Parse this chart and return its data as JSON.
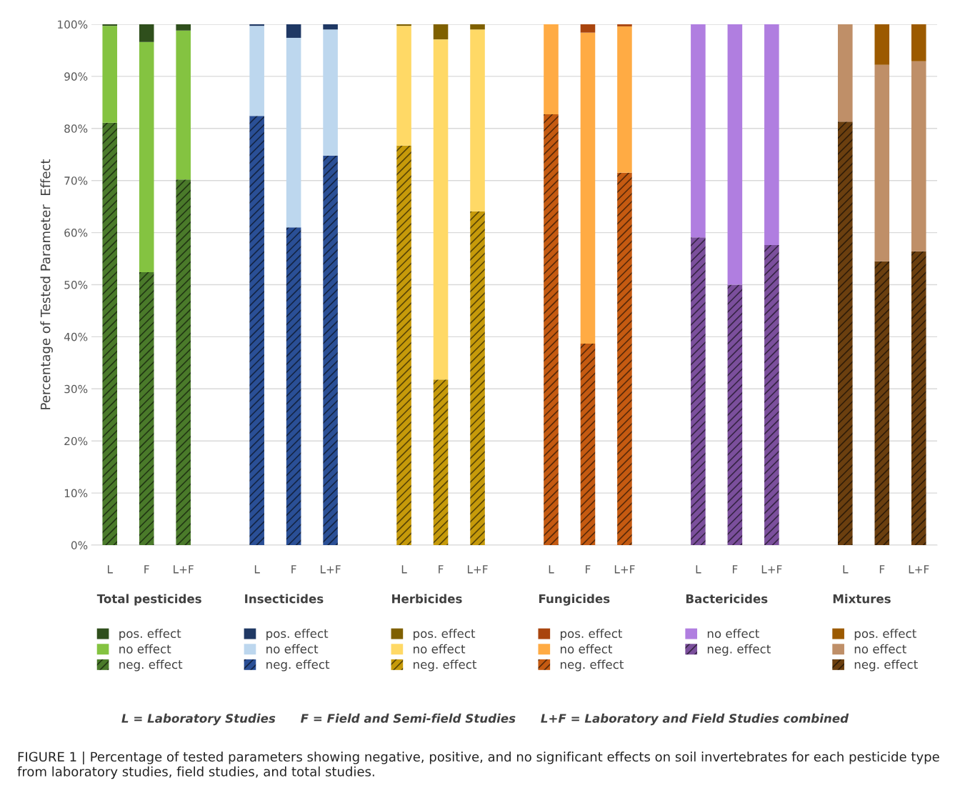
{
  "chart_data": {
    "type": "bar",
    "stacked": true,
    "legend": "bottom",
    "ylabel": "Percentage of Tested Parameter  Effect",
    "grid": "y",
    "ylim": [
      0,
      100
    ],
    "yticks": [
      {
        "value": 0,
        "label": "0%"
      },
      {
        "value": 10,
        "label": "10%"
      },
      {
        "value": 20,
        "label": "20%"
      },
      {
        "value": 30,
        "label": "30%"
      },
      {
        "value": 40,
        "label": "40%"
      },
      {
        "value": 50,
        "label": "50%"
      },
      {
        "value": 60,
        "label": "60%"
      },
      {
        "value": 70,
        "label": "70%"
      },
      {
        "value": 80,
        "label": "80%"
      },
      {
        "value": 90,
        "label": "90%"
      },
      {
        "value": 100,
        "label": "100%"
      }
    ],
    "categories": [
      "L",
      "F",
      "L+F",
      null,
      "L",
      "F",
      "L+F",
      null,
      "L",
      "F",
      "L+F",
      null,
      "L",
      "F",
      "L+F",
      null,
      "L",
      "F",
      "L+F",
      null,
      "L",
      "F",
      "L+F"
    ],
    "series": [
      {
        "name": "neg. effect",
        "values": [
          81.1,
          52.4,
          70.2,
          null,
          82.4,
          61.0,
          74.8,
          null,
          76.7,
          31.8,
          64.1,
          null,
          82.7,
          38.7,
          71.5,
          null,
          59.1,
          50.0,
          57.6,
          null,
          81.3,
          54.5,
          56.4
        ],
        "colors": [
          "#4a7a2a",
          "#4a7a2a",
          "#4a7a2a",
          null,
          "#2a4f96",
          "#2a4f96",
          "#2a4f96",
          null,
          "#c69a0a",
          "#c69a0a",
          "#c69a0a",
          null,
          "#c55a11",
          "#c55a11",
          "#c55a11",
          null,
          "#7b4f9c",
          "#7b4f9c",
          "#7b4f9c",
          null,
          "#6b3f0f",
          "#6b3f0f",
          "#6b3f0f"
        ]
      },
      {
        "name": "no effect",
        "values": [
          18.6,
          44.2,
          28.6,
          null,
          17.3,
          36.4,
          24.2,
          null,
          23.0,
          65.3,
          34.9,
          null,
          17.3,
          59.7,
          28.1,
          null,
          40.9,
          50.0,
          42.4,
          null,
          18.7,
          37.7,
          36.5
        ],
        "colors": [
          "#84c341",
          "#84c341",
          "#84c341",
          null,
          "#bdd7ee",
          "#bdd7ee",
          "#bdd7ee",
          null,
          "#ffd966",
          "#ffd966",
          "#ffd966",
          null,
          "#ffab44",
          "#ffab44",
          "#ffab44",
          null,
          "#b07ee0",
          "#b07ee0",
          "#b07ee0",
          null,
          "#bf8f68",
          "#bf8f68",
          "#bf8f68"
        ]
      },
      {
        "name": "pos. effect",
        "values": [
          0.3,
          3.4,
          1.2,
          null,
          0.3,
          2.6,
          1.0,
          null,
          0.3,
          2.9,
          1.0,
          null,
          null,
          1.6,
          0.4,
          null,
          null,
          null,
          null,
          null,
          null,
          7.8,
          7.1
        ],
        "colors": [
          "#2f4f1c",
          "#2f4f1c",
          "#2f4f1c",
          null,
          "#1f3864",
          "#1f3864",
          "#1f3864",
          null,
          "#7f6000",
          "#7f6000",
          "#7f6000",
          null,
          "#a9450e",
          "#a9450e",
          "#a9450e",
          null,
          null,
          null,
          null,
          null,
          "#9c5a00",
          "#9c5a00",
          "#9c5a00"
        ]
      }
    ],
    "annotations": [
      "Total pesticides",
      "Insecticides",
      "Herbicides",
      "Fungicides",
      "Bactericides",
      "Mixtures",
      "L = Laboratory Studies      F = Field and Semi-field Studies      L+F = Laboratory and Field Studies combined",
      "FIGURE 1 | Percentage of tested parameters showing negative, positive, and no significant effects on soil invertebrates for each pesticide type from laboratory studies, field studies, and total studies."
    ]
  }
}
